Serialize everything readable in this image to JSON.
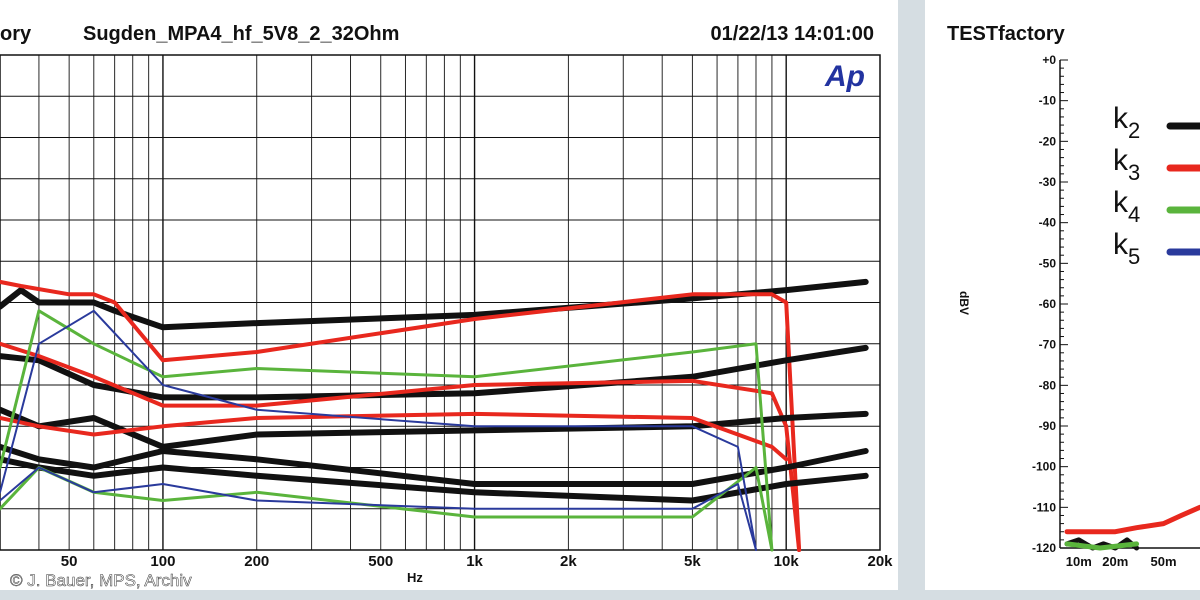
{
  "colors": {
    "background": "#d5dde2",
    "panel": "#ffffff",
    "grid": "#111111",
    "black": "#111111",
    "red": "#e8281e",
    "green": "#5ab43c",
    "blue": "#2a3a9c",
    "logo": "#2233a0"
  },
  "left_panel": {
    "brand_partial": "ory",
    "title": "Sugden_MPA4_hf_5V8_2_32Ohm",
    "datetime": "01/22/13 14:01:00",
    "logo_text": "Ap",
    "copyright": "© J. Bauer, MPS, Archiv"
  },
  "right_panel": {
    "brand": "TESTfactory",
    "ylabel": "d B V"
  },
  "chart_data": [
    {
      "type": "line",
      "xscale": "log",
      "xlabel": "Hz",
      "x_ticks": [
        "50",
        "100",
        "200",
        "500",
        "1k",
        "2k",
        "5k",
        "10k",
        "20k"
      ],
      "x_tick_values": [
        50,
        100,
        200,
        500,
        1000,
        2000,
        5000,
        10000,
        20000
      ],
      "xlim": [
        30,
        20000
      ],
      "ylim": [
        -120,
        0
      ],
      "y_ticks_visible": false,
      "grid": true,
      "series": [
        {
          "color": "black",
          "width": 6,
          "x": [
            30,
            35,
            40,
            60,
            70,
            100,
            200,
            1000,
            5000,
            10000,
            18000
          ],
          "y": [
            -61,
            -57,
            -60,
            -60,
            -62,
            -66,
            -65,
            -63,
            -59,
            -57,
            -55
          ]
        },
        {
          "color": "red",
          "width": 4,
          "x": [
            30,
            35,
            50,
            60,
            70,
            100,
            200,
            1000,
            5000,
            9000,
            10000,
            11000
          ],
          "y": [
            -55,
            -56,
            -58,
            -58,
            -60,
            -74,
            -72,
            -64,
            -58,
            -58,
            -60,
            -120
          ]
        },
        {
          "color": "black",
          "width": 6,
          "x": [
            30,
            40,
            60,
            100,
            200,
            1000,
            5000,
            10000,
            18000
          ],
          "y": [
            -73,
            -74,
            -80,
            -83,
            -83,
            -82,
            -78,
            -74,
            -71
          ]
        },
        {
          "color": "red",
          "width": 4,
          "x": [
            30,
            40,
            60,
            100,
            200,
            1000,
            5000,
            9000,
            10000,
            11000
          ],
          "y": [
            -70,
            -73,
            -78,
            -85,
            -85,
            -80,
            -79,
            -82,
            -90,
            -120
          ]
        },
        {
          "color": "black",
          "width": 6,
          "x": [
            30,
            40,
            60,
            100,
            200,
            1000,
            5000,
            10000,
            18000
          ],
          "y": [
            -86,
            -90,
            -88,
            -95,
            -92,
            -91,
            -90,
            -88,
            -87
          ]
        },
        {
          "color": "red",
          "width": 4,
          "x": [
            30,
            40,
            60,
            100,
            200,
            1000,
            5000,
            9000,
            10000
          ],
          "y": [
            -88,
            -90,
            -92,
            -90,
            -88,
            -87,
            -88,
            -95,
            -98
          ]
        },
        {
          "color": "black",
          "width": 6,
          "x": [
            30,
            40,
            60,
            100,
            200,
            1000,
            5000,
            10000,
            18000
          ],
          "y": [
            -95,
            -98,
            -100,
            -96,
            -98,
            -104,
            -104,
            -100,
            -96
          ]
        },
        {
          "color": "black",
          "width": 6,
          "x": [
            30,
            40,
            60,
            100,
            200,
            1000,
            5000,
            10000,
            18000
          ],
          "y": [
            -98,
            -100,
            -102,
            -100,
            -102,
            -106,
            -108,
            -104,
            -102
          ]
        },
        {
          "color": "green",
          "width": 3,
          "x": [
            30,
            40,
            60,
            100,
            200,
            1000,
            5000,
            8000,
            9000
          ],
          "y": [
            -100,
            -62,
            -70,
            -78,
            -76,
            -78,
            -72,
            -70,
            -120
          ]
        },
        {
          "color": "green",
          "width": 3,
          "x": [
            30,
            40,
            60,
            100,
            200,
            1000,
            5000,
            8000,
            9000
          ],
          "y": [
            -110,
            -100,
            -106,
            -108,
            -106,
            -112,
            -112,
            -100,
            -120
          ]
        },
        {
          "color": "blue",
          "width": 2,
          "x": [
            30,
            40,
            60,
            100,
            200,
            1000,
            5000,
            7000,
            8000
          ],
          "y": [
            -106,
            -70,
            -62,
            -80,
            -86,
            -90,
            -90,
            -95,
            -120
          ]
        },
        {
          "color": "blue",
          "width": 2,
          "x": [
            30,
            40,
            60,
            100,
            200,
            1000,
            5000,
            7000,
            8000
          ],
          "y": [
            -108,
            -100,
            -106,
            -104,
            -108,
            -110,
            -110,
            -104,
            -120
          ]
        }
      ]
    },
    {
      "type": "line",
      "xscale": "log",
      "ylabel": "dBV",
      "y_ticks": [
        "+0",
        "-10",
        "-20",
        "-30",
        "-40",
        "-50",
        "-60",
        "-70",
        "-80",
        "-90",
        "-100",
        "-110",
        "-120"
      ],
      "y_tick_values": [
        0,
        -10,
        -20,
        -30,
        -40,
        -50,
        -60,
        -70,
        -80,
        -90,
        -100,
        -110,
        -120
      ],
      "ylim": [
        -120,
        0
      ],
      "x_ticks": [
        "10m",
        "20m",
        "50m"
      ],
      "x_tick_values": [
        0.01,
        0.02,
        0.05
      ],
      "xlim": [
        0.007,
        0.1
      ],
      "legend": {
        "position": "top-left",
        "entries": [
          {
            "label": "k",
            "sub": "2",
            "color": "black"
          },
          {
            "label": "k",
            "sub": "3",
            "color": "red"
          },
          {
            "label": "k",
            "sub": "4",
            "color": "green"
          },
          {
            "label": "k",
            "sub": "5",
            "color": "blue"
          }
        ]
      },
      "series": [
        {
          "name": "k2",
          "color": "black",
          "x": [
            0.008,
            0.01,
            0.013,
            0.016,
            0.02,
            0.025,
            0.03
          ],
          "y": [
            -119,
            -118,
            -120,
            -119,
            -120,
            -118,
            -120
          ]
        },
        {
          "name": "k3",
          "color": "red",
          "x": [
            0.008,
            0.01,
            0.02,
            0.03,
            0.05,
            0.07,
            0.1
          ],
          "y": [
            -116,
            -116,
            -116,
            -115,
            -114,
            -112,
            -110
          ]
        },
        {
          "name": "k4",
          "color": "green",
          "x": [
            0.008,
            0.015,
            0.03
          ],
          "y": [
            -119,
            -120,
            -119
          ]
        }
      ]
    }
  ]
}
